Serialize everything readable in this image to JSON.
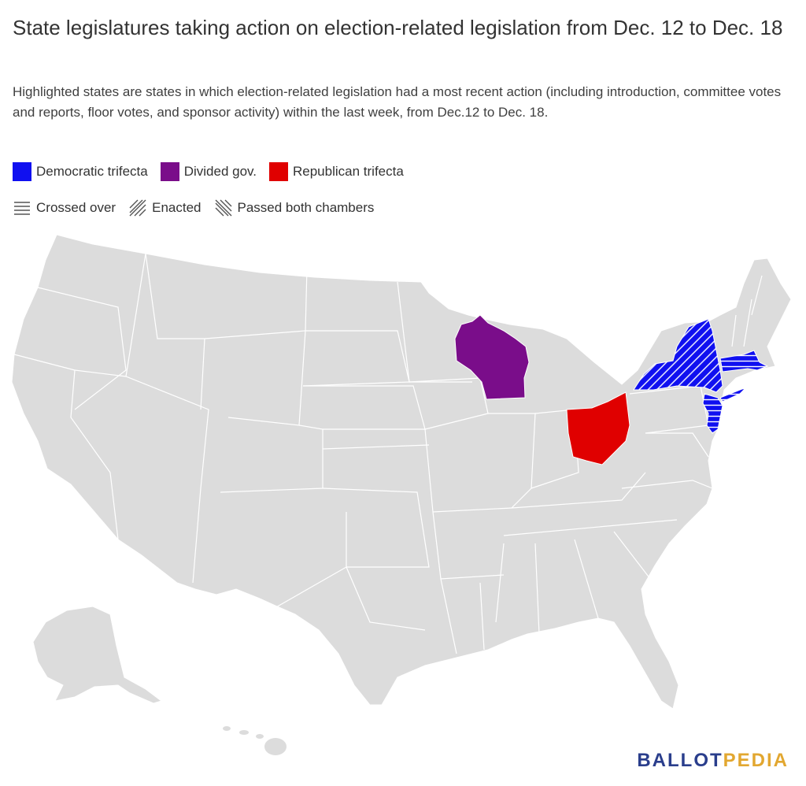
{
  "title": "State legislatures taking action on election-related legislation from Dec. 12 to Dec. 18",
  "subtitle": "Highlighted states are states in which election-related legislation had a most recent action (including introduction, committee votes and reports, floor votes, and sponsor activity) within the last week, from Dec.12 to Dec. 18.",
  "legend": {
    "colors": [
      {
        "label": "Democratic trifecta",
        "color": "#1010f0"
      },
      {
        "label": "Divided gov.",
        "color": "#7a0d8a"
      },
      {
        "label": "Republican trifecta",
        "color": "#e00000"
      }
    ],
    "patterns": [
      {
        "label": "Crossed over",
        "pattern": "horizontal-lines"
      },
      {
        "label": "Enacted",
        "pattern": "diagonal-forward"
      },
      {
        "label": "Passed both chambers",
        "pattern": "diagonal-backward"
      }
    ]
  },
  "map": {
    "base_color": "#dcdcdc",
    "highlighted_states": [
      {
        "state": "Wisconsin",
        "status": "Divided gov.",
        "color": "#7a0d8a",
        "pattern": "none"
      },
      {
        "state": "Ohio",
        "status": "Republican trifecta",
        "color": "#e00000",
        "pattern": "none"
      },
      {
        "state": "New York",
        "status": "Democratic trifecta",
        "color": "#1010f0",
        "pattern": "diagonal-forward"
      },
      {
        "state": "Massachusetts",
        "status": "Democratic trifecta",
        "color": "#1010f0",
        "pattern": "horizontal-lines"
      },
      {
        "state": "New Jersey",
        "status": "Democratic trifecta",
        "color": "#1010f0",
        "pattern": "horizontal-lines"
      }
    ]
  },
  "brand": {
    "part1": "BALLOT",
    "part2": "PEDIA"
  }
}
